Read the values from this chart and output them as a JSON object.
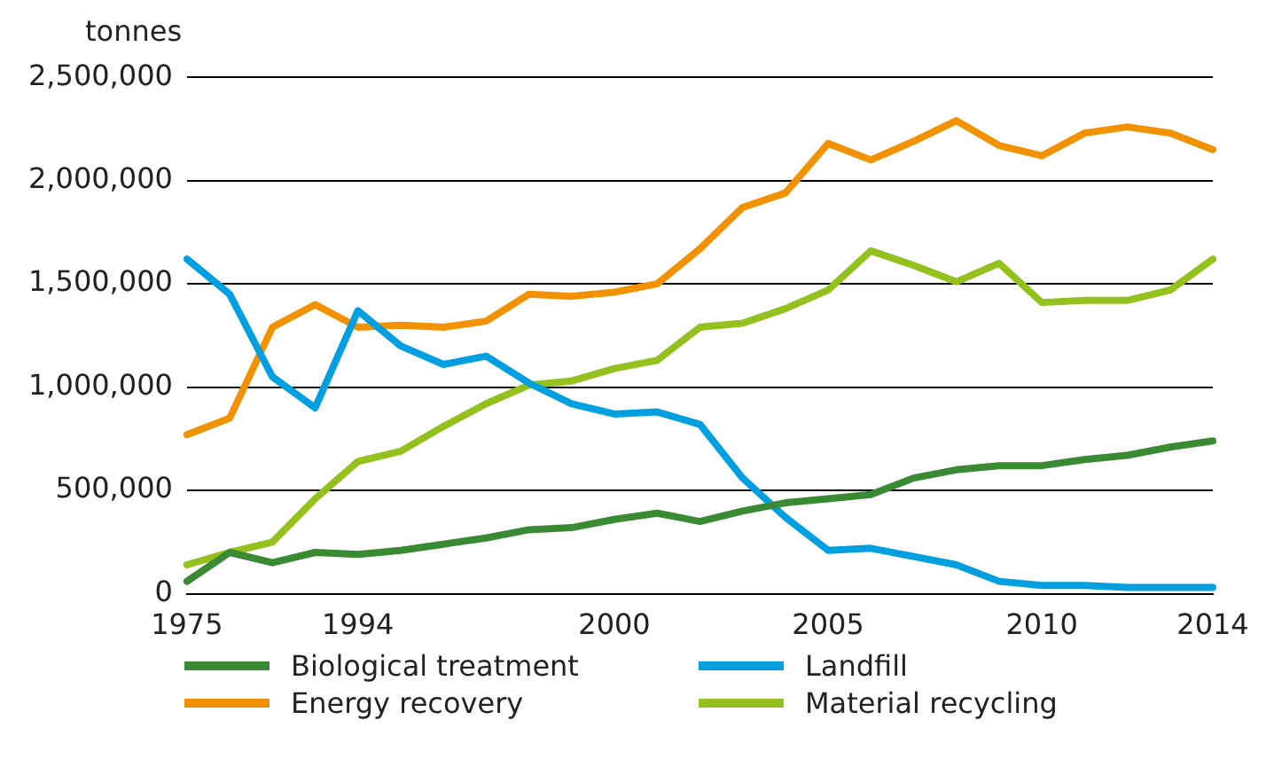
{
  "chart_data": {
    "type": "line",
    "ylabel": "tonnes",
    "categories": [
      "1975",
      null,
      null,
      null,
      "1994",
      null,
      null,
      null,
      null,
      null,
      "2000",
      null,
      null,
      null,
      null,
      "2005",
      null,
      null,
      null,
      null,
      "2010",
      null,
      null,
      null,
      "2014"
    ],
    "series": [
      {
        "name": "Biological treatment",
        "color": "#3a8a34",
        "values": [
          60000,
          200000,
          150000,
          200000,
          190000,
          210000,
          240000,
          270000,
          310000,
          320000,
          360000,
          390000,
          350000,
          400000,
          440000,
          460000,
          480000,
          560000,
          600000,
          620000,
          620000,
          650000,
          670000,
          710000,
          740000
        ]
      },
      {
        "name": "Landfill",
        "color": "#00a0e0",
        "values": [
          1620000,
          1450000,
          1050000,
          900000,
          1370000,
          1200000,
          1110000,
          1150000,
          1020000,
          920000,
          870000,
          880000,
          820000,
          560000,
          370000,
          210000,
          220000,
          180000,
          140000,
          60000,
          40000,
          40000,
          30000,
          30000,
          30000
        ]
      },
      {
        "name": "Energy recovery",
        "color": "#f39200",
        "values": [
          770000,
          850000,
          1290000,
          1400000,
          1290000,
          1300000,
          1290000,
          1320000,
          1450000,
          1440000,
          1460000,
          1500000,
          1670000,
          1870000,
          1940000,
          2180000,
          2100000,
          2190000,
          2290000,
          2170000,
          2120000,
          2230000,
          2260000,
          2230000,
          2150000
        ]
      },
      {
        "name": "Material recycling",
        "color": "#95c11f",
        "values": [
          140000,
          200000,
          250000,
          460000,
          640000,
          690000,
          810000,
          920000,
          1010000,
          1030000,
          1090000,
          1130000,
          1290000,
          1310000,
          1380000,
          1470000,
          1660000,
          1590000,
          1510000,
          1600000,
          1410000,
          1420000,
          1420000,
          1470000,
          1620000
        ]
      }
    ],
    "ylim": [
      0,
      2500000
    ],
    "yticks": [
      0,
      {
        "value": 500000,
        "label": "500,000"
      },
      {
        "value": 1000000,
        "label": "1,000,000"
      },
      {
        "value": 1500000,
        "label": "1,500,000"
      },
      {
        "value": 2000000,
        "label": "2,000,000"
      },
      {
        "value": 2500000,
        "label": "2,500,000"
      }
    ],
    "grid": "y",
    "legend": "bottom",
    "marker": "none",
    "line_style": "solid"
  }
}
